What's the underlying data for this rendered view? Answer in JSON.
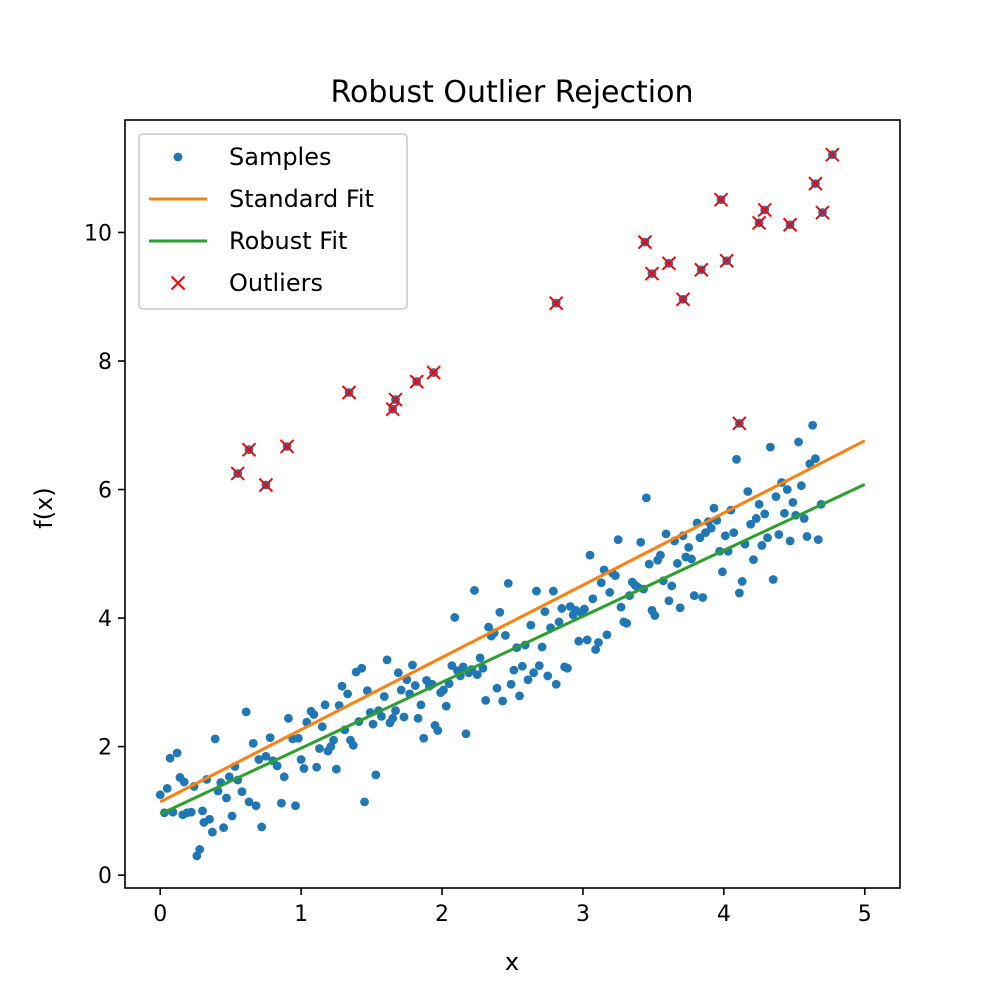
{
  "chart_data": {
    "type": "scatter",
    "title": "Robust Outlier Rejection",
    "xlabel": "x",
    "ylabel": "f(x)",
    "xlim": [
      -0.25,
      5.25
    ],
    "ylim": [
      -0.2,
      11.75
    ],
    "xticks": [
      0,
      1,
      2,
      3,
      4,
      5
    ],
    "yticks": [
      0,
      2,
      4,
      6,
      8,
      10
    ],
    "grid": false,
    "legend_position": "upper-left",
    "colors": {
      "samples": "#1f77b4",
      "standard_fit": "#ff7f0e",
      "robust_fit": "#2ca02c",
      "outliers": "#ff0000"
    },
    "legend": [
      {
        "label": "Samples",
        "marker": "dot",
        "color": "#1f77b4"
      },
      {
        "label": "Standard Fit",
        "marker": "line",
        "color": "#ff7f0e"
      },
      {
        "label": "Robust Fit",
        "marker": "line",
        "color": "#2ca02c"
      },
      {
        "label": "Outliers",
        "marker": "x",
        "color": "#ff0000"
      }
    ],
    "series": [
      {
        "name": "Samples",
        "type": "scatter",
        "points": [
          [
            0.0,
            1.25
          ],
          [
            0.03,
            0.97
          ],
          [
            0.05,
            1.35
          ],
          [
            0.07,
            1.82
          ],
          [
            0.09,
            0.98
          ],
          [
            0.12,
            1.9
          ],
          [
            0.14,
            1.52
          ],
          [
            0.16,
            0.94
          ],
          [
            0.17,
            1.45
          ],
          [
            0.19,
            0.97
          ],
          [
            0.22,
            0.98
          ],
          [
            0.24,
            1.38
          ],
          [
            0.26,
            0.3
          ],
          [
            0.28,
            0.4
          ],
          [
            0.3,
            1.0
          ],
          [
            0.31,
            0.82
          ],
          [
            0.33,
            1.49
          ],
          [
            0.35,
            0.87
          ],
          [
            0.37,
            0.67
          ],
          [
            0.39,
            2.12
          ],
          [
            0.41,
            1.31
          ],
          [
            0.43,
            1.44
          ],
          [
            0.45,
            0.74
          ],
          [
            0.47,
            1.2
          ],
          [
            0.49,
            1.53
          ],
          [
            0.51,
            0.92
          ],
          [
            0.53,
            1.69
          ],
          [
            0.55,
            1.48
          ],
          [
            0.58,
            1.3
          ],
          [
            0.61,
            2.54
          ],
          [
            0.63,
            1.14
          ],
          [
            0.66,
            2.05
          ],
          [
            0.68,
            1.08
          ],
          [
            0.7,
            1.8
          ],
          [
            0.72,
            0.75
          ],
          [
            0.75,
            1.85
          ],
          [
            0.78,
            2.14
          ],
          [
            0.8,
            1.78
          ],
          [
            0.83,
            1.7
          ],
          [
            0.86,
            1.12
          ],
          [
            0.88,
            1.53
          ],
          [
            0.91,
            2.44
          ],
          [
            0.94,
            2.12
          ],
          [
            0.96,
            1.08
          ],
          [
            0.98,
            2.13
          ],
          [
            1.0,
            1.8
          ],
          [
            1.02,
            1.66
          ],
          [
            1.04,
            2.38
          ],
          [
            1.07,
            2.55
          ],
          [
            1.09,
            2.5
          ],
          [
            1.11,
            1.68
          ],
          [
            1.13,
            1.97
          ],
          [
            1.15,
            2.31
          ],
          [
            1.17,
            2.65
          ],
          [
            1.19,
            1.93
          ],
          [
            1.21,
            2.0
          ],
          [
            1.23,
            2.1
          ],
          [
            1.25,
            1.65
          ],
          [
            1.27,
            2.64
          ],
          [
            1.29,
            2.94
          ],
          [
            1.31,
            2.26
          ],
          [
            1.33,
            2.82
          ],
          [
            1.35,
            2.1
          ],
          [
            1.37,
            2.02
          ],
          [
            1.39,
            3.16
          ],
          [
            1.41,
            2.39
          ],
          [
            1.43,
            3.22
          ],
          [
            1.45,
            1.14
          ],
          [
            1.47,
            2.87
          ],
          [
            1.49,
            2.53
          ],
          [
            1.51,
            2.35
          ],
          [
            1.53,
            1.56
          ],
          [
            1.55,
            2.56
          ],
          [
            1.57,
            2.47
          ],
          [
            1.59,
            2.78
          ],
          [
            1.61,
            3.35
          ],
          [
            1.63,
            2.37
          ],
          [
            1.65,
            2.44
          ],
          [
            1.67,
            2.56
          ],
          [
            1.69,
            3.15
          ],
          [
            1.71,
            2.88
          ],
          [
            1.73,
            2.46
          ],
          [
            1.75,
            3.04
          ],
          [
            1.77,
            2.82
          ],
          [
            1.79,
            3.27
          ],
          [
            1.81,
            2.95
          ],
          [
            1.83,
            2.44
          ],
          [
            1.85,
            2.65
          ],
          [
            1.87,
            2.13
          ],
          [
            1.89,
            3.03
          ],
          [
            1.91,
            2.94
          ],
          [
            1.93,
            2.97
          ],
          [
            1.95,
            2.33
          ],
          [
            1.97,
            2.25
          ],
          [
            1.99,
            2.84
          ],
          [
            2.01,
            2.88
          ],
          [
            2.03,
            2.63
          ],
          [
            2.05,
            2.98
          ],
          [
            2.07,
            3.26
          ],
          [
            2.09,
            4.01
          ],
          [
            2.11,
            3.18
          ],
          [
            2.13,
            3.1
          ],
          [
            2.15,
            3.24
          ],
          [
            2.17,
            2.2
          ],
          [
            2.19,
            3.15
          ],
          [
            2.21,
            3.2
          ],
          [
            2.23,
            4.43
          ],
          [
            2.25,
            3.12
          ],
          [
            2.27,
            3.38
          ],
          [
            2.29,
            3.22
          ],
          [
            2.31,
            2.72
          ],
          [
            2.33,
            3.86
          ],
          [
            2.35,
            3.72
          ],
          [
            2.37,
            3.77
          ],
          [
            2.39,
            2.91
          ],
          [
            2.41,
            4.09
          ],
          [
            2.43,
            2.71
          ],
          [
            2.45,
            3.73
          ],
          [
            2.47,
            4.54
          ],
          [
            2.49,
            2.97
          ],
          [
            2.51,
            3.19
          ],
          [
            2.53,
            3.54
          ],
          [
            2.55,
            2.79
          ],
          [
            2.57,
            3.25
          ],
          [
            2.59,
            3.58
          ],
          [
            2.61,
            3.04
          ],
          [
            2.63,
            3.89
          ],
          [
            2.65,
            3.15
          ],
          [
            2.67,
            4.42
          ],
          [
            2.69,
            3.26
          ],
          [
            2.71,
            3.55
          ],
          [
            2.73,
            4.1
          ],
          [
            2.75,
            3.1
          ],
          [
            2.77,
            3.85
          ],
          [
            2.79,
            4.42
          ],
          [
            2.81,
            2.97
          ],
          [
            2.83,
            3.94
          ],
          [
            2.85,
            4.15
          ],
          [
            2.87,
            3.24
          ],
          [
            2.89,
            3.22
          ],
          [
            2.91,
            4.18
          ],
          [
            2.93,
            4.05
          ],
          [
            2.95,
            4.12
          ],
          [
            2.97,
            3.64
          ],
          [
            2.99,
            4.08
          ],
          [
            3.01,
            4.14
          ],
          [
            3.03,
            3.66
          ],
          [
            3.05,
            4.98
          ],
          [
            3.07,
            4.3
          ],
          [
            3.09,
            3.51
          ],
          [
            3.11,
            3.62
          ],
          [
            3.13,
            4.55
          ],
          [
            3.15,
            4.75
          ],
          [
            3.17,
            3.74
          ],
          [
            3.19,
            4.4
          ],
          [
            3.21,
            4.7
          ],
          [
            3.23,
            4.66
          ],
          [
            3.25,
            5.22
          ],
          [
            3.27,
            4.17
          ],
          [
            3.29,
            3.94
          ],
          [
            3.31,
            3.92
          ],
          [
            3.33,
            4.35
          ],
          [
            3.35,
            4.56
          ],
          [
            3.37,
            4.51
          ],
          [
            3.39,
            4.48
          ],
          [
            3.41,
            5.18
          ],
          [
            3.43,
            4.45
          ],
          [
            3.45,
            5.87
          ],
          [
            3.47,
            4.84
          ],
          [
            3.49,
            4.12
          ],
          [
            3.51,
            4.04
          ],
          [
            3.53,
            4.9
          ],
          [
            3.55,
            4.98
          ],
          [
            3.57,
            4.58
          ],
          [
            3.59,
            5.31
          ],
          [
            3.61,
            4.27
          ],
          [
            3.63,
            4.5
          ],
          [
            3.65,
            5.2
          ],
          [
            3.67,
            4.85
          ],
          [
            3.69,
            4.16
          ],
          [
            3.71,
            5.28
          ],
          [
            3.73,
            4.95
          ],
          [
            3.75,
            5.1
          ],
          [
            3.77,
            4.92
          ],
          [
            3.79,
            4.35
          ],
          [
            3.81,
            5.48
          ],
          [
            3.83,
            5.25
          ],
          [
            3.85,
            4.32
          ],
          [
            3.87,
            5.33
          ],
          [
            3.89,
            5.5
          ],
          [
            3.91,
            5.4
          ],
          [
            3.93,
            5.71
          ],
          [
            3.95,
            5.52
          ],
          [
            3.97,
            5.04
          ],
          [
            3.99,
            4.72
          ],
          [
            4.01,
            5.28
          ],
          [
            4.03,
            5.04
          ],
          [
            4.05,
            5.68
          ],
          [
            4.07,
            5.33
          ],
          [
            4.09,
            6.47
          ],
          [
            4.11,
            4.39
          ],
          [
            4.13,
            4.57
          ],
          [
            4.15,
            5.15
          ],
          [
            4.17,
            5.97
          ],
          [
            4.19,
            5.46
          ],
          [
            4.21,
            4.91
          ],
          [
            4.23,
            5.55
          ],
          [
            4.25,
            5.77
          ],
          [
            4.27,
            5.13
          ],
          [
            4.29,
            5.62
          ],
          [
            4.31,
            5.25
          ],
          [
            4.33,
            6.66
          ],
          [
            4.35,
            4.6
          ],
          [
            4.37,
            5.89
          ],
          [
            4.39,
            5.3
          ],
          [
            4.41,
            6.11
          ],
          [
            4.43,
            5.63
          ],
          [
            4.45,
            6.0
          ],
          [
            4.47,
            5.2
          ],
          [
            4.49,
            5.8
          ],
          [
            4.51,
            5.6
          ],
          [
            4.53,
            6.74
          ],
          [
            4.55,
            6.06
          ],
          [
            4.57,
            5.55
          ],
          [
            4.59,
            5.27
          ],
          [
            4.61,
            6.4
          ],
          [
            4.63,
            7.0
          ],
          [
            4.65,
            6.48
          ],
          [
            4.67,
            5.22
          ],
          [
            4.69,
            5.77
          ]
        ]
      },
      {
        "name": "Standard Fit",
        "type": "line",
        "x": [
          0,
          5
        ],
        "y": [
          1.14,
          6.76
        ]
      },
      {
        "name": "Robust Fit",
        "type": "line",
        "x": [
          0,
          5
        ],
        "y": [
          0.95,
          6.08
        ]
      },
      {
        "name": "Outliers",
        "type": "scatter",
        "points": [
          [
            0.55,
            6.25
          ],
          [
            0.63,
            6.62
          ],
          [
            0.75,
            6.07
          ],
          [
            0.9,
            6.67
          ],
          [
            1.34,
            7.51
          ],
          [
            1.65,
            7.25
          ],
          [
            1.67,
            7.4
          ],
          [
            1.82,
            7.68
          ],
          [
            1.94,
            7.82
          ],
          [
            2.81,
            8.9
          ],
          [
            3.44,
            9.85
          ],
          [
            3.49,
            9.36
          ],
          [
            3.61,
            9.52
          ],
          [
            3.71,
            8.96
          ],
          [
            3.84,
            9.42
          ],
          [
            3.98,
            10.51
          ],
          [
            4.02,
            9.56
          ],
          [
            4.11,
            7.03
          ],
          [
            4.25,
            10.15
          ],
          [
            4.29,
            10.35
          ],
          [
            4.47,
            10.12
          ],
          [
            4.65,
            10.76
          ],
          [
            4.7,
            10.31
          ],
          [
            4.77,
            11.21
          ]
        ]
      }
    ]
  }
}
